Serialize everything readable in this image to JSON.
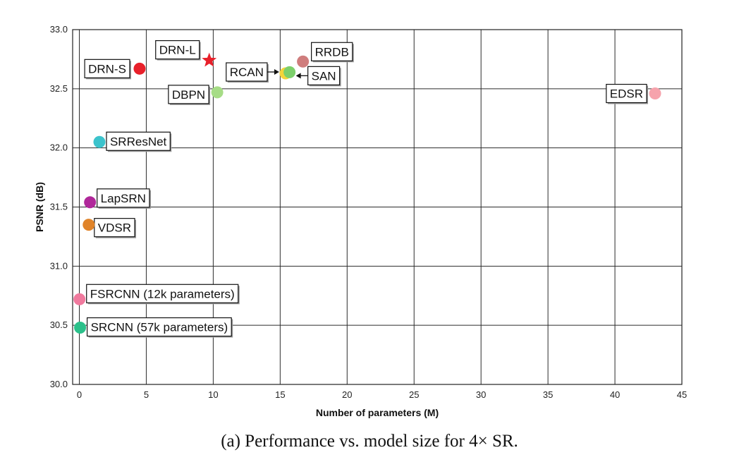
{
  "chart_data": {
    "type": "scatter",
    "xlabel": "Number of parameters (M)",
    "ylabel": "PSNR (dB)",
    "xlim": [
      -0.5,
      45
    ],
    "ylim": [
      30.0,
      33.0
    ],
    "xticks": [
      "0",
      "5",
      "10",
      "15",
      "20",
      "25",
      "30",
      "35",
      "40",
      "45"
    ],
    "yticks": [
      "30.0",
      "30.5",
      "31.0",
      "31.5",
      "32.0",
      "32.5",
      "33.0"
    ],
    "grid": true,
    "points": [
      {
        "label": "DRN-S",
        "x": 4.5,
        "y": 32.67,
        "color": "#e8202a",
        "marker": "circle"
      },
      {
        "label": "DRN-L",
        "x": 9.7,
        "y": 32.74,
        "color": "#e8202a",
        "marker": "star"
      },
      {
        "label": "DBPN",
        "x": 10.3,
        "y": 32.47,
        "color": "#a6dc86",
        "marker": "circle"
      },
      {
        "label": "RCAN",
        "x": 15.4,
        "y": 32.63,
        "color": "#f3d43a",
        "marker": "circle"
      },
      {
        "label": "SAN",
        "x": 15.7,
        "y": 32.64,
        "color": "#7ccf6b",
        "marker": "circle"
      },
      {
        "label": "RRDB",
        "x": 16.7,
        "y": 32.73,
        "color": "#cf7d7d",
        "marker": "circle"
      },
      {
        "label": "EDSR",
        "x": 43.0,
        "y": 32.46,
        "color": "#f6a3ac",
        "marker": "circle"
      },
      {
        "label": "SRResNet",
        "x": 1.5,
        "y": 32.05,
        "color": "#3cc3cc",
        "marker": "circle"
      },
      {
        "label": "LapSRN",
        "x": 0.8,
        "y": 31.54,
        "color": "#b0289a",
        "marker": "circle"
      },
      {
        "label": "VDSR",
        "x": 0.7,
        "y": 31.35,
        "color": "#e0842a",
        "marker": "circle"
      },
      {
        "label": "FSRCNN (12k parameters)",
        "x": 0.012,
        "y": 30.72,
        "color": "#f07a9e",
        "marker": "circle"
      },
      {
        "label": "SRCNN (57k parameters)",
        "x": 0.057,
        "y": 30.48,
        "color": "#2bc08a",
        "marker": "circle"
      }
    ]
  },
  "caption": "(a)  Performance vs. model size for 4× SR."
}
